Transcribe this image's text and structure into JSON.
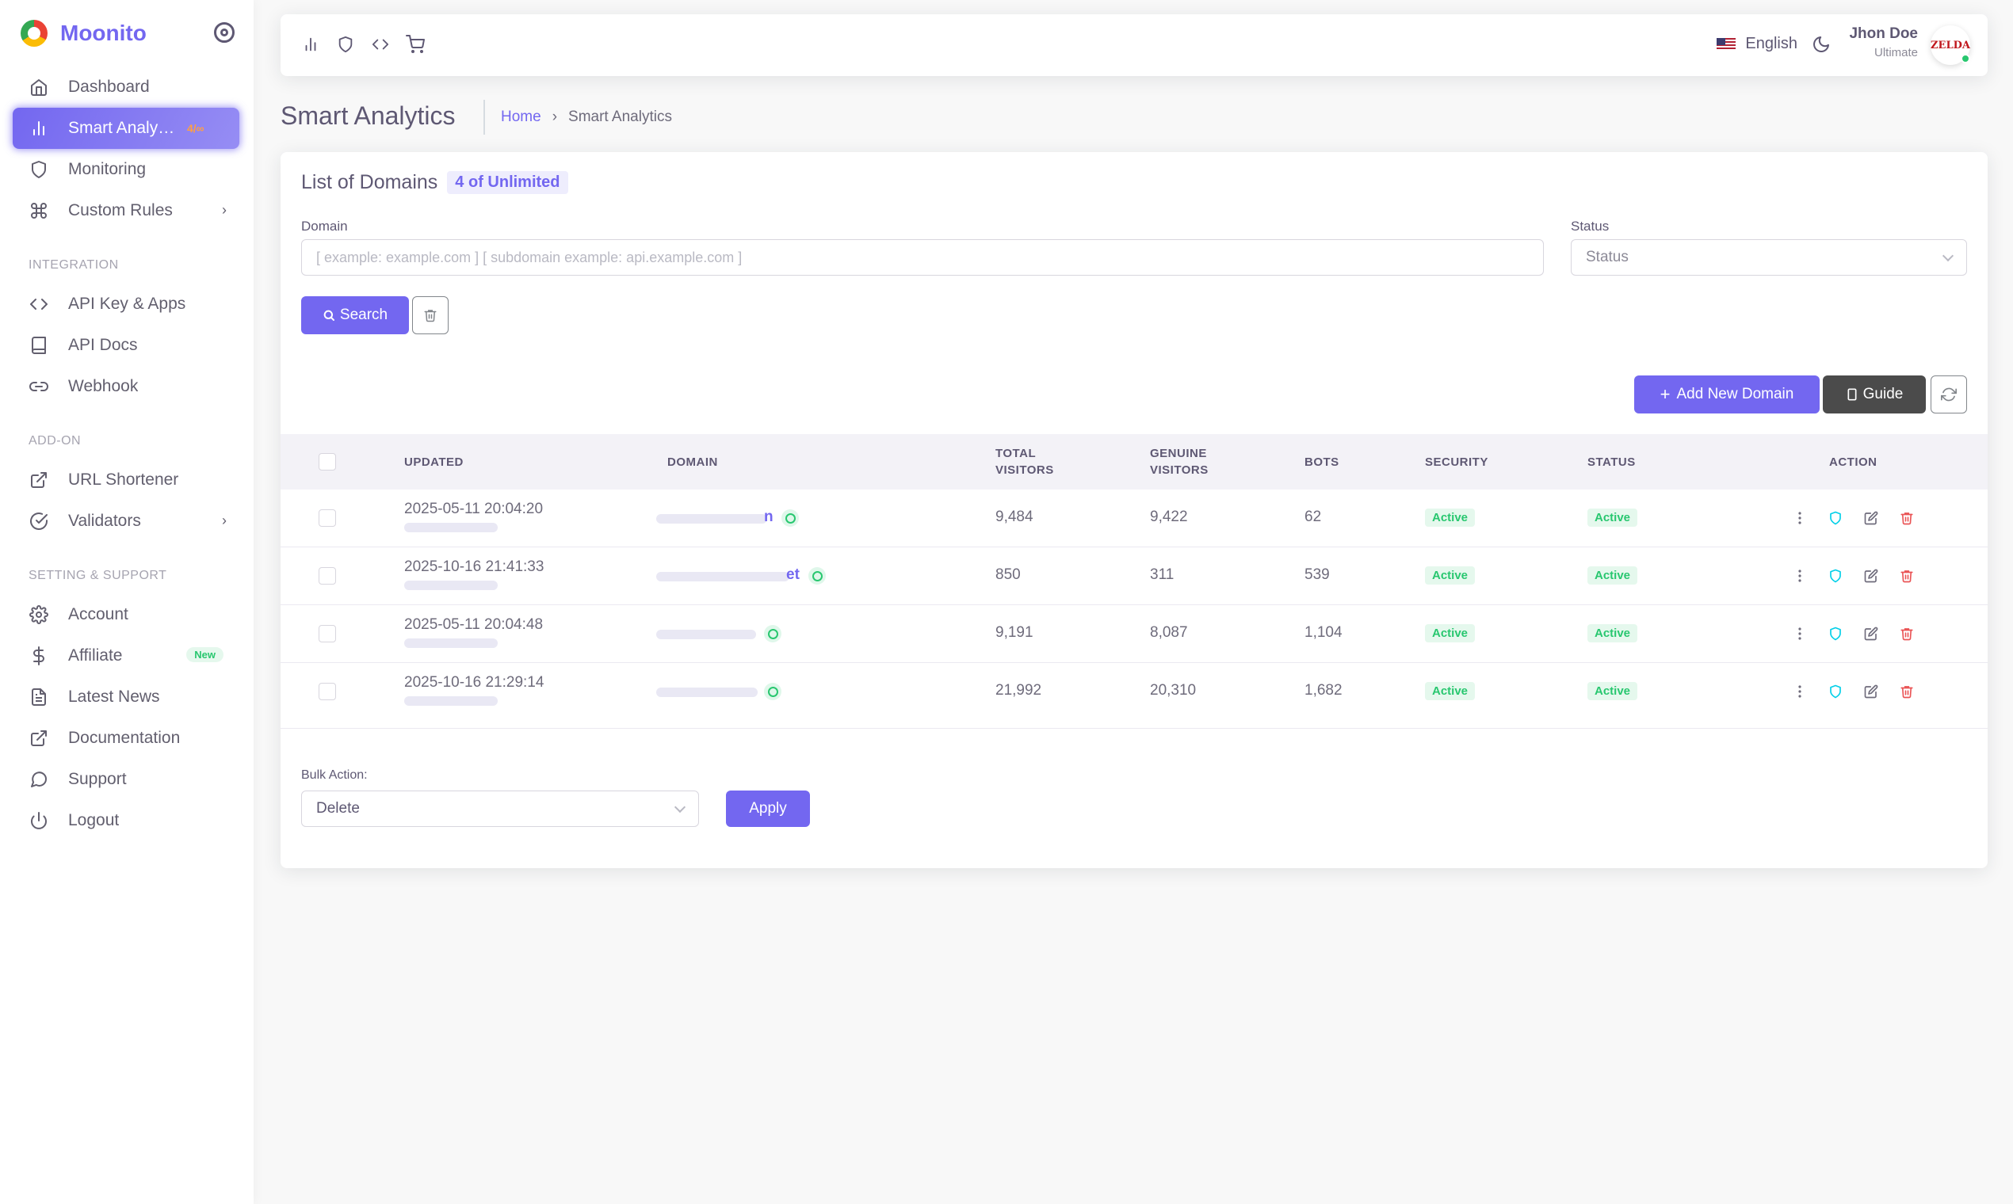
{
  "brand": {
    "name": "Moonito"
  },
  "sidebar": {
    "items": [
      {
        "label": "Dashboard"
      },
      {
        "label": "Smart Analytics",
        "badge": "4/∞"
      },
      {
        "label": "Monitoring"
      },
      {
        "label": "Custom Rules"
      }
    ],
    "integration_header": "INTEGRATION",
    "integration": [
      {
        "label": "API Key & Apps"
      },
      {
        "label": "API Docs"
      },
      {
        "label": "Webhook"
      }
    ],
    "addon_header": "ADD-ON",
    "addon": [
      {
        "label": "URL Shortener"
      },
      {
        "label": "Validators"
      }
    ],
    "support_header": "SETTING & SUPPORT",
    "support": [
      {
        "label": "Account"
      },
      {
        "label": "Affiliate",
        "badge": "New"
      },
      {
        "label": "Latest News"
      },
      {
        "label": "Documentation"
      },
      {
        "label": "Support"
      },
      {
        "label": "Logout"
      }
    ]
  },
  "topbar": {
    "language": "English",
    "user_name": "Jhon Doe",
    "user_plan": "Ultimate",
    "avatar_text": "ZELDA"
  },
  "page": {
    "title": "Smart Analytics",
    "breadcrumb_home": "Home",
    "breadcrumb_current": "Smart Analytics"
  },
  "card": {
    "title": "List of Domains",
    "count_badge": "4 of Unlimited",
    "domain_label": "Domain",
    "domain_placeholder": "[ example: example.com ] [ subdomain example: api.example.com ]",
    "status_label": "Status",
    "status_placeholder": "Status",
    "search_label": "Search",
    "add_domain_label": "Add New Domain",
    "guide_label": "Guide",
    "bulk_label": "Bulk Action:",
    "bulk_value": "Delete",
    "apply_label": "Apply"
  },
  "table": {
    "headers": {
      "updated": "UPDATED",
      "domain": "DOMAIN",
      "total_1": "TOTAL",
      "total_2": "VISITORS",
      "genuine_1": "GENUINE",
      "genuine_2": "VISITORS",
      "bots": "BOTS",
      "security": "SECURITY",
      "status": "STATUS",
      "action": "ACTION"
    },
    "rows": [
      {
        "updated": "2025-05-11 20:04:20",
        "domain_tail": "n",
        "total": "9,484",
        "genuine": "9,422",
        "bots": "62",
        "security": "Active",
        "status": "Active"
      },
      {
        "updated": "2025-10-16 21:41:33",
        "domain_tail": "et",
        "total": "850",
        "genuine": "311",
        "bots": "539",
        "security": "Active",
        "status": "Active"
      },
      {
        "updated": "2025-05-11 20:04:48",
        "domain_tail": "",
        "total": "9,191",
        "genuine": "8,087",
        "bots": "1,104",
        "security": "Active",
        "status": "Active"
      },
      {
        "updated": "2025-10-16 21:29:14",
        "domain_tail": "",
        "total": "21,992",
        "genuine": "20,310",
        "bots": "1,682",
        "security": "Active",
        "status": "Active"
      }
    ]
  }
}
